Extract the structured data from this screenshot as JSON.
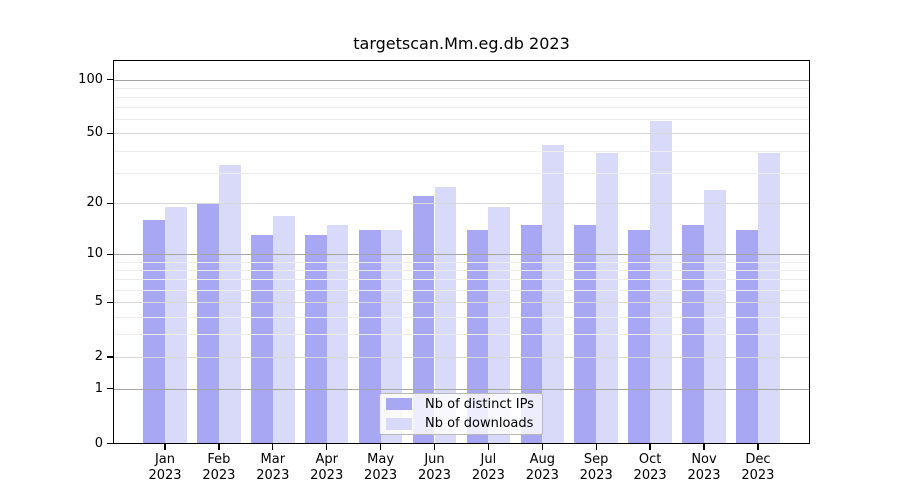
{
  "chart_data": {
    "type": "bar",
    "title": "targetscan.Mm.eg.db 2023",
    "year": "2023",
    "categories": [
      "Jan",
      "Feb",
      "Mar",
      "Apr",
      "May",
      "Jun",
      "Jul",
      "Aug",
      "Sep",
      "Oct",
      "Nov",
      "Dec"
    ],
    "series": [
      {
        "name": "Nb of distinct IPs",
        "color": "#a7a7f3",
        "values": [
          16,
          20,
          13,
          13,
          14,
          22,
          14,
          15,
          15,
          14,
          15,
          14
        ]
      },
      {
        "name": "Nb of downloads",
        "color": "#d9d9f9",
        "values": [
          19,
          33,
          17,
          15,
          14,
          25,
          19,
          43,
          39,
          59,
          24,
          39
        ]
      }
    ],
    "y_ticks": [
      100,
      50,
      20,
      10,
      5,
      2,
      1,
      0
    ],
    "y_scale": "log1p",
    "ylim": [
      0,
      127
    ],
    "xlabel": "",
    "ylabel": "",
    "grid": true,
    "legend_position": "bottom-center",
    "colors": {
      "axis": "#000000",
      "grid_decade": "#a6a6a6",
      "grid_labeled": "#d9d9d9",
      "grid_minor": "#ededed",
      "background": "#ffffff"
    }
  }
}
